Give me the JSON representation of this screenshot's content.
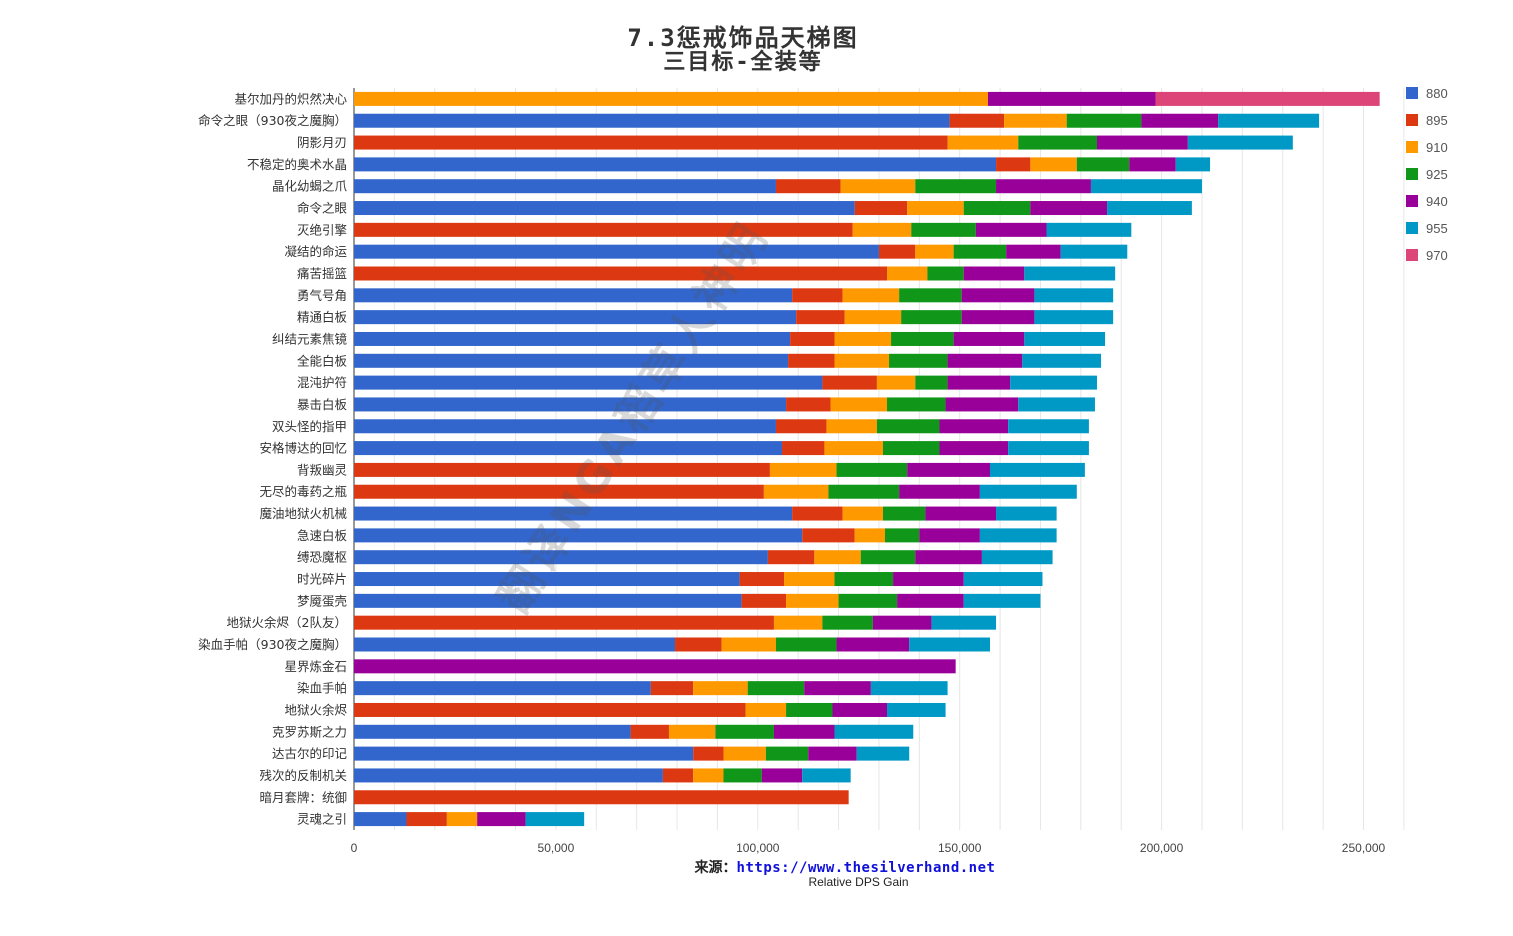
{
  "title_line1": "7.3惩戒饰品天梯图",
  "title_line2": "三目标-全装等",
  "source_label": "来源：",
  "source_url": "https://www.thesilverhand.net",
  "watermark": "翻译NGA稻草人神明",
  "chart_data": {
    "type": "bar",
    "orientation": "horizontal",
    "stacked": true,
    "xlabel": "Relative DPS Gain",
    "xlim": [
      0,
      250000
    ],
    "xticks": [
      0,
      50000,
      100000,
      150000,
      200000,
      250000
    ],
    "xtick_labels": [
      "0",
      "50,000",
      "100,000",
      "150,000",
      "200,000",
      "250,000"
    ],
    "grid": "vertical",
    "legend_position": "right",
    "series": [
      {
        "name": "880",
        "color": "#3366cc"
      },
      {
        "name": "895",
        "color": "#dc3912"
      },
      {
        "name": "910",
        "color": "#ff9900"
      },
      {
        "name": "925",
        "color": "#109618"
      },
      {
        "name": "940",
        "color": "#990099"
      },
      {
        "name": "955",
        "color": "#0099c6"
      },
      {
        "name": "970",
        "color": "#dd4477"
      }
    ],
    "categories": [
      "基尔加丹的炽然决心",
      "命令之眼（930夜之魔胸）",
      "阴影月刃",
      "不稳定的奥术水晶",
      "晶化幼蝎之爪",
      "命令之眼",
      "灭绝引擎",
      "凝结的命运",
      "痛苦摇篮",
      "勇气号角",
      "精通白板",
      "纠结元素焦镜",
      "全能白板",
      "混沌护符",
      "暴击白板",
      "双头怪的指甲",
      "安格博达的回忆",
      "背叛幽灵",
      "无尽的毒药之瓶",
      "魔油地狱火机械",
      "急速白板",
      "缚恐魔枢",
      "时光碎片",
      "梦魇蛋壳",
      "地狱火余烬（2队友）",
      "染血手帕（930夜之魔胸）",
      "星界炼金石",
      "染血手帕",
      "地狱火余烬",
      "克罗苏斯之力",
      "达古尔的印记",
      "残次的反制机关",
      "暗月套牌：统御",
      "灵魂之引"
    ],
    "cumulative_values": [
      [
        null,
        null,
        157000,
        null,
        198500,
        null,
        254000
      ],
      [
        147500,
        161000,
        176500,
        195000,
        214000,
        239000,
        null
      ],
      [
        null,
        147000,
        164500,
        184000,
        206500,
        232500,
        null
      ],
      [
        159000,
        167500,
        179000,
        192000,
        203500,
        212000,
        null
      ],
      [
        104500,
        120500,
        139000,
        159000,
        182500,
        210000,
        null
      ],
      [
        124000,
        137000,
        151000,
        167500,
        186500,
        207500,
        null
      ],
      [
        null,
        123500,
        138000,
        154000,
        171500,
        192500,
        null
      ],
      [
        130000,
        139000,
        148500,
        161500,
        175000,
        191500,
        null
      ],
      [
        null,
        132000,
        142000,
        151000,
        166000,
        188500,
        null
      ],
      [
        108500,
        121000,
        135000,
        150500,
        168500,
        188000,
        null
      ],
      [
        109500,
        121500,
        135500,
        150500,
        168500,
        188000,
        null
      ],
      [
        108000,
        119000,
        133000,
        148500,
        166000,
        186000,
        null
      ],
      [
        107500,
        119000,
        132500,
        147000,
        165500,
        185000,
        null
      ],
      [
        116000,
        129500,
        139000,
        147000,
        162500,
        184000,
        null
      ],
      [
        107000,
        118000,
        132000,
        146500,
        164500,
        183500,
        null
      ],
      [
        104500,
        117000,
        129500,
        145000,
        162000,
        182000,
        null
      ],
      [
        106000,
        116500,
        131000,
        145000,
        162000,
        182000,
        null
      ],
      [
        null,
        103000,
        119500,
        137000,
        157500,
        181000,
        null
      ],
      [
        null,
        101500,
        117500,
        135000,
        155000,
        179000,
        null
      ],
      [
        108500,
        121000,
        131000,
        141500,
        159000,
        174000,
        null
      ],
      [
        111000,
        124000,
        131500,
        140000,
        155000,
        174000,
        null
      ],
      [
        102500,
        114000,
        125500,
        139000,
        155500,
        173000,
        null
      ],
      [
        95500,
        106500,
        119000,
        133500,
        151000,
        170500,
        null
      ],
      [
        96000,
        107000,
        120000,
        134500,
        151000,
        170000,
        null
      ],
      [
        null,
        104000,
        116000,
        128500,
        143000,
        159000,
        null
      ],
      [
        79500,
        91000,
        104500,
        119500,
        137500,
        157500,
        null
      ],
      [
        null,
        null,
        null,
        null,
        149000,
        null,
        null
      ],
      [
        73500,
        84000,
        97500,
        111500,
        128000,
        147000,
        null
      ],
      [
        null,
        97000,
        107000,
        118500,
        132000,
        146500,
        null
      ],
      [
        68500,
        78000,
        89500,
        104000,
        119000,
        138500,
        null
      ],
      [
        84000,
        91500,
        102000,
        112500,
        124500,
        137500,
        null
      ],
      [
        76500,
        84000,
        91500,
        101000,
        111000,
        123000,
        null
      ],
      [
        null,
        122500,
        null,
        null,
        null,
        null,
        null
      ],
      [
        13000,
        23000,
        30500,
        null,
        42500,
        57000,
        null
      ]
    ]
  }
}
